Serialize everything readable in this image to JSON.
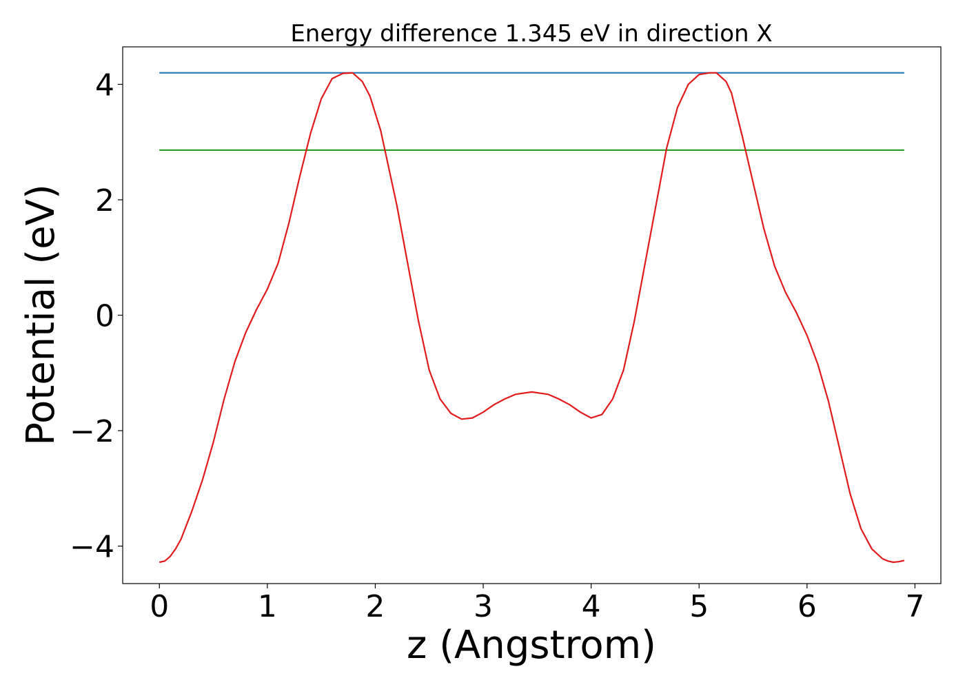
{
  "chart_data": {
    "type": "line",
    "title": "Energy difference 1.345 eV in direction X",
    "xlabel": "z (Angstrom)",
    "ylabel": "Potential (eV)",
    "xlim": [
      -0.34,
      7.24
    ],
    "ylim": [
      -4.65,
      4.65
    ],
    "xticks": [
      0,
      1,
      2,
      3,
      4,
      5,
      6,
      7
    ],
    "xtick_labels": [
      "0",
      "1",
      "2",
      "3",
      "4",
      "5",
      "6",
      "7"
    ],
    "yticks": [
      -4,
      -2,
      0,
      2,
      4
    ],
    "ytick_labels": [
      "−4",
      "−2",
      "0",
      "2",
      "4"
    ],
    "grid": false,
    "series": [
      {
        "color": "#1f77b4",
        "x": [
          0,
          6.9
        ],
        "y": [
          4.2,
          4.2
        ]
      },
      {
        "color": "#2ca02c",
        "x": [
          0,
          6.9
        ],
        "y": [
          2.86,
          2.86
        ]
      },
      {
        "color": "#e31a1c",
        "x": [
          0.0,
          0.05,
          0.1,
          0.15,
          0.2,
          0.3,
          0.4,
          0.5,
          0.6,
          0.7,
          0.8,
          0.9,
          1.0,
          1.1,
          1.2,
          1.3,
          1.4,
          1.5,
          1.6,
          1.7,
          1.79,
          1.88,
          1.95,
          2.05,
          2.2,
          2.3,
          2.4,
          2.5,
          2.6,
          2.7,
          2.8,
          2.9,
          3.0,
          3.1,
          3.2,
          3.3,
          3.45,
          3.6,
          3.7,
          3.8,
          3.9,
          4.0,
          4.1,
          4.2,
          4.3,
          4.4,
          4.5,
          4.6,
          4.7,
          4.8,
          4.9,
          5.0,
          5.1,
          5.16,
          5.25,
          5.3,
          5.4,
          5.5,
          5.6,
          5.7,
          5.8,
          5.9,
          6.0,
          6.1,
          6.2,
          6.3,
          6.4,
          6.5,
          6.6,
          6.7,
          6.75,
          6.8,
          6.85,
          6.9
        ],
        "y": [
          -4.28,
          -4.26,
          -4.18,
          -4.05,
          -3.88,
          -3.4,
          -2.85,
          -2.2,
          -1.45,
          -0.8,
          -0.3,
          0.1,
          0.45,
          0.9,
          1.6,
          2.4,
          3.15,
          3.75,
          4.1,
          4.19,
          4.2,
          4.05,
          3.8,
          3.2,
          1.9,
          0.9,
          -0.1,
          -0.95,
          -1.45,
          -1.7,
          -1.8,
          -1.78,
          -1.68,
          -1.55,
          -1.45,
          -1.37,
          -1.33,
          -1.37,
          -1.45,
          -1.55,
          -1.68,
          -1.78,
          -1.72,
          -1.45,
          -0.95,
          -0.1,
          0.9,
          1.9,
          2.9,
          3.6,
          4.0,
          4.17,
          4.2,
          4.2,
          4.05,
          3.85,
          3.1,
          2.3,
          1.5,
          0.85,
          0.4,
          0.05,
          -0.35,
          -0.85,
          -1.5,
          -2.3,
          -3.1,
          -3.7,
          -4.05,
          -4.22,
          -4.26,
          -4.28,
          -4.27,
          -4.25
        ]
      }
    ]
  }
}
